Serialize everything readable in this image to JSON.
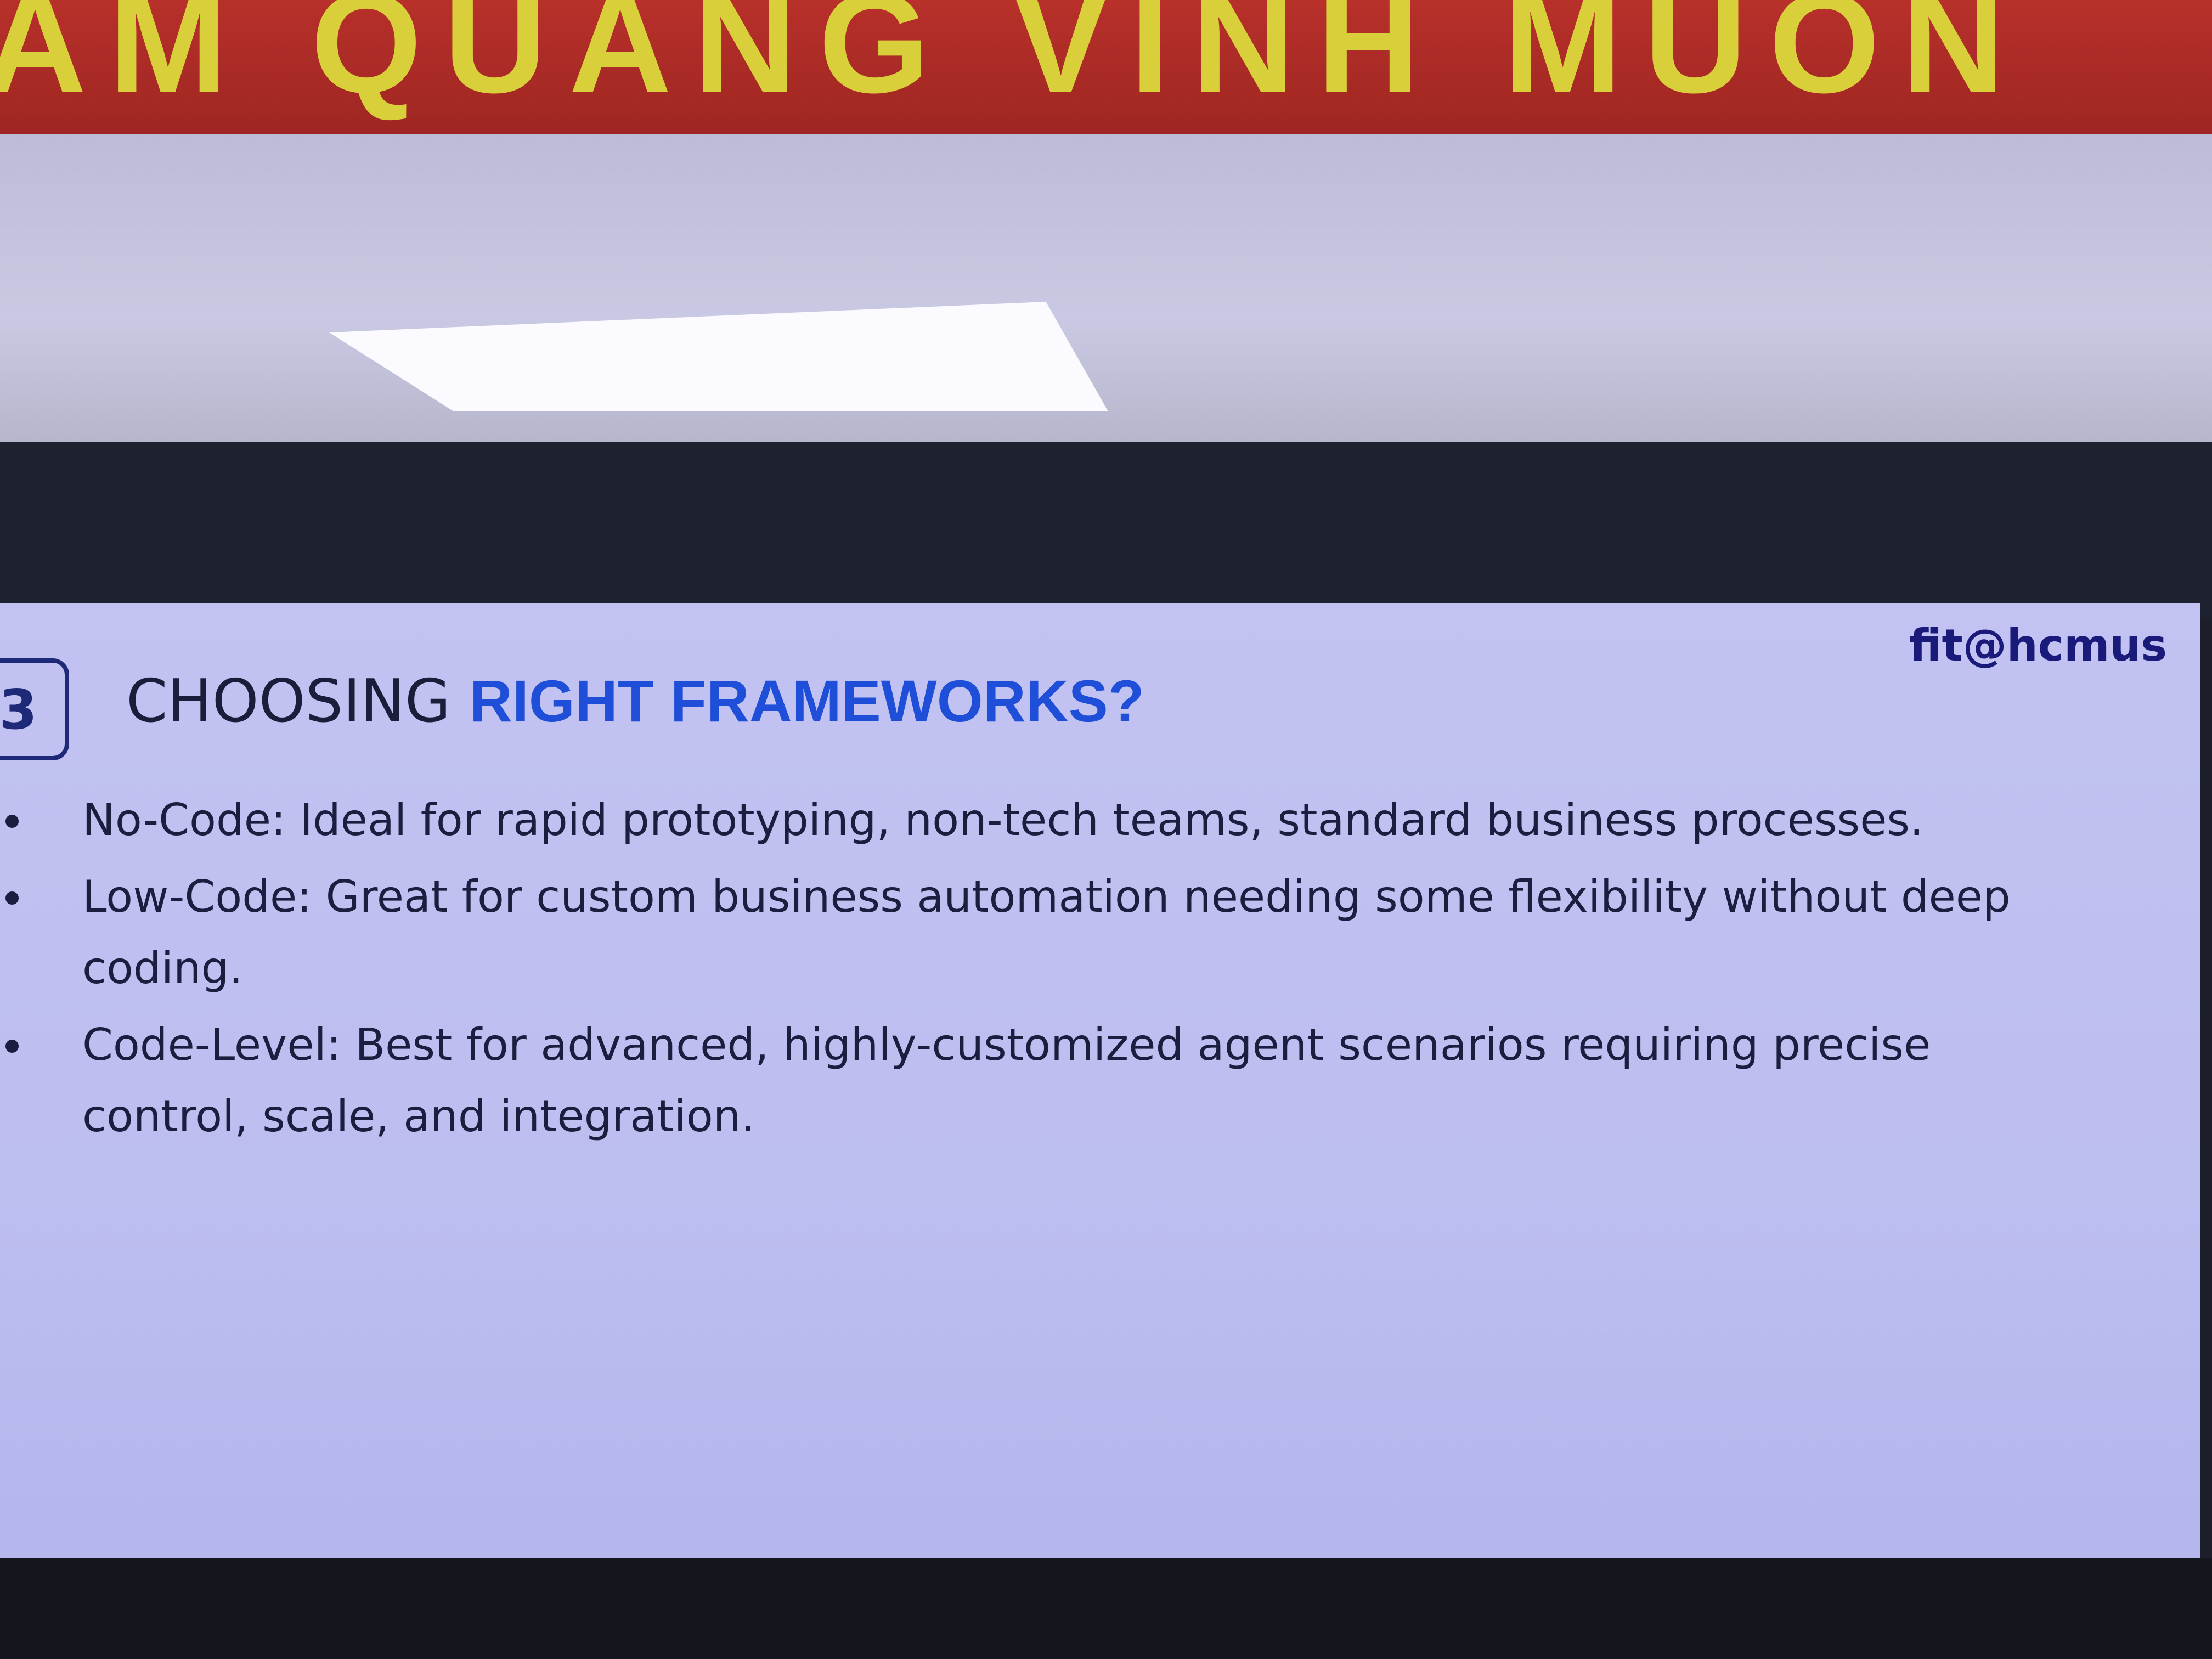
{
  "banner": {
    "text": "AM QUANG VINH MUON"
  },
  "slide": {
    "badge": "3",
    "title": {
      "lead": "CHOOSING",
      "highlight": "RIGHT FRAMEWORKS?"
    },
    "brand": "fit@hcmus",
    "bullets": [
      {
        "term": "No-Code:",
        "text": "Ideal for rapid prototyping, non-tech teams, standard business processes."
      },
      {
        "term": "Low-Code:",
        "text": "Great for custom business automation needing some flexibility without deep coding."
      },
      {
        "term": "Code-Level:",
        "text": "Best for advanced, highly-customized agent scenarios requiring precise control, scale, and integration."
      }
    ]
  }
}
